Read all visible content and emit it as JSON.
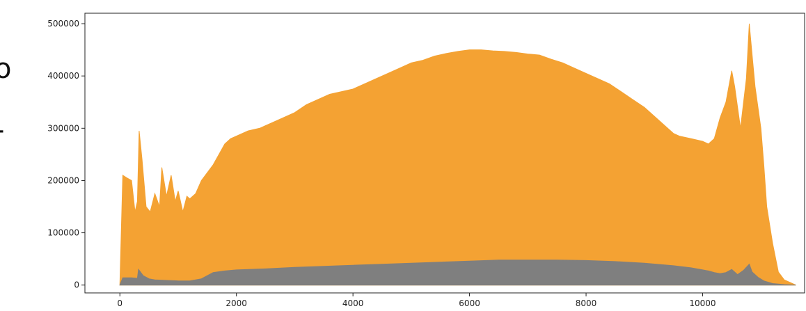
{
  "left_edge_glyphs": [
    "o",
    "-"
  ],
  "chart_data": {
    "type": "area",
    "title": "",
    "xlabel": "",
    "ylabel": "",
    "xlim": [
      -600,
      11750
    ],
    "ylim": [
      -15000,
      520000
    ],
    "grid": false,
    "legend": "none",
    "xticks": [
      0,
      2000,
      4000,
      6000,
      8000,
      10000
    ],
    "xtick_labels": [
      "0",
      "2000",
      "4000",
      "6000",
      "8000",
      "10000"
    ],
    "yticks": [
      0,
      100000,
      200000,
      300000,
      400000,
      500000
    ],
    "ytick_labels": [
      "0",
      "100000",
      "200000",
      "300000",
      "400000",
      "500000"
    ],
    "series": [
      {
        "color": "#f4a233",
        "x": [
          0,
          50,
          120,
          200,
          260,
          300,
          330,
          380,
          450,
          520,
          600,
          680,
          720,
          800,
          880,
          950,
          1000,
          1080,
          1150,
          1200,
          1300,
          1400,
          1500,
          1600,
          1700,
          1800,
          1900,
          2000,
          2200,
          2400,
          2600,
          2800,
          3000,
          3200,
          3400,
          3600,
          3800,
          4000,
          4200,
          4400,
          4600,
          4800,
          5000,
          5200,
          5400,
          5600,
          5800,
          6000,
          6200,
          6400,
          6600,
          6800,
          7000,
          7200,
          7400,
          7600,
          7800,
          8000,
          8200,
          8400,
          8600,
          8800,
          9000,
          9200,
          9400,
          9500,
          9600,
          9800,
          10000,
          10100,
          10200,
          10300,
          10400,
          10500,
          10550,
          10650,
          10750,
          10800,
          10850,
          10900,
          10950,
          11000,
          11050,
          11100,
          11200,
          11300,
          11400,
          11500,
          11600
        ],
        "values": [
          0,
          210000,
          205000,
          200000,
          140000,
          160000,
          295000,
          240000,
          150000,
          140000,
          175000,
          150000,
          225000,
          170000,
          210000,
          160000,
          180000,
          140000,
          170000,
          165000,
          175000,
          200000,
          215000,
          230000,
          250000,
          270000,
          280000,
          285000,
          295000,
          300000,
          310000,
          320000,
          330000,
          345000,
          355000,
          365000,
          370000,
          375000,
          385000,
          395000,
          405000,
          415000,
          425000,
          430000,
          438000,
          443000,
          447000,
          450000,
          450000,
          448000,
          447000,
          445000,
          442000,
          440000,
          432000,
          425000,
          415000,
          405000,
          395000,
          385000,
          370000,
          355000,
          340000,
          320000,
          300000,
          290000,
          285000,
          280000,
          275000,
          270000,
          280000,
          320000,
          350000,
          410000,
          380000,
          300000,
          395000,
          500000,
          440000,
          380000,
          340000,
          300000,
          230000,
          150000,
          80000,
          25000,
          10000,
          5000,
          0
        ]
      },
      {
        "color": "#7f7f7f",
        "x": [
          0,
          50,
          200,
          300,
          320,
          400,
          500,
          600,
          800,
          1000,
          1200,
          1400,
          1500,
          1600,
          1800,
          2000,
          2500,
          3000,
          3500,
          4000,
          4500,
          5000,
          5500,
          6000,
          6500,
          7000,
          7500,
          8000,
          8500,
          9000,
          9500,
          9800,
          10000,
          10100,
          10200,
          10300,
          10400,
          10500,
          10600,
          10700,
          10800,
          10850,
          10950,
          11050,
          11200,
          11400,
          11600
        ],
        "values": [
          0,
          14000,
          14000,
          13000,
          30000,
          18000,
          12000,
          10000,
          9000,
          8000,
          8000,
          12000,
          18000,
          24000,
          27000,
          29000,
          31000,
          34000,
          36000,
          38000,
          40000,
          42000,
          44000,
          46000,
          48000,
          48000,
          48000,
          47000,
          45000,
          42000,
          37000,
          33000,
          29000,
          27000,
          24000,
          22000,
          24000,
          30000,
          20000,
          28000,
          40000,
          25000,
          15000,
          8000,
          3000,
          1000,
          0
        ]
      }
    ]
  }
}
